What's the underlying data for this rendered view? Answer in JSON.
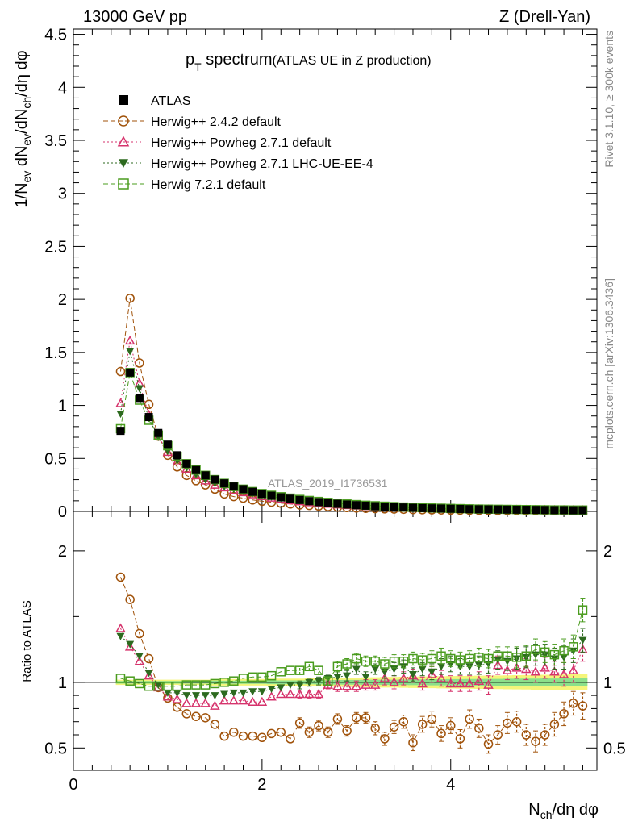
{
  "header": {
    "left": "13000 GeV pp",
    "right": "Z (Drell-Yan)"
  },
  "side_labels": {
    "rivet": "Rivet 3.1.10, ≥ 300k events",
    "mcplots": "mcplots.cern.ch [arXiv:1306.3436]"
  },
  "chart_data": [
    {
      "type": "scatter",
      "title_main": "p",
      "title_sub": "T",
      "title_main2": " spectrum",
      "title_paren": "(ATLAS UE in Z production)",
      "analysis_tag": "ATLAS_2019_I1736531",
      "ylabel": "1/N_ev dN_ev/dN_ch/dη dφ",
      "xlim": [
        0,
        5.55
      ],
      "ylim": [
        0,
        4.55
      ],
      "yticks": [
        {
          "v": 0,
          "label": "0"
        },
        {
          "v": 0.5,
          "label": "0.5"
        },
        {
          "v": 1,
          "label": "1"
        },
        {
          "v": 1.5,
          "label": "1.5"
        },
        {
          "v": 2,
          "label": "2"
        },
        {
          "v": 2.5,
          "label": "2.5"
        },
        {
          "v": 3,
          "label": "3"
        },
        {
          "v": 3.5,
          "label": "3.5"
        },
        {
          "v": 4,
          "label": "4"
        },
        {
          "v": 4.5,
          "label": "4.5"
        }
      ],
      "legend": [
        {
          "key": "atlas",
          "label": "ATLAS"
        },
        {
          "key": "h242",
          "label": "Herwig++ 2.4.2 default"
        },
        {
          "key": "hpow",
          "label": "Herwig++ Powheg 2.7.1 default"
        },
        {
          "key": "hlhc",
          "label": "Herwig++ Powheg 2.7.1 LHC-UE-EE-4"
        },
        {
          "key": "h721",
          "label": "Herwig 7.2.1 default"
        }
      ],
      "x_start": 0.5,
      "x_step": 0.1,
      "series": [
        {
          "key": "atlas",
          "name": "ATLAS",
          "color": "#000000",
          "marker": "square-filled",
          "values": [
            0.76,
            1.31,
            1.07,
            0.89,
            0.74,
            0.63,
            0.53,
            0.45,
            0.39,
            0.34,
            0.3,
            0.265,
            0.235,
            0.21,
            0.185,
            0.165,
            0.148,
            0.133,
            0.12,
            0.108,
            0.097,
            0.088,
            0.079,
            0.072,
            0.065,
            0.059,
            0.054,
            0.049,
            0.045,
            0.041,
            0.037,
            0.034,
            0.031,
            0.029,
            0.027,
            0.025,
            0.023,
            0.021,
            0.02,
            0.019,
            0.018,
            0.017,
            0.016,
            0.015,
            0.014,
            0.013,
            0.012,
            0.012,
            0.011,
            0.011
          ]
        },
        {
          "key": "h242",
          "name": "Herwig++ 2.4.2 default",
          "color": "#a0520a",
          "marker": "circle-open",
          "values": [
            1.32,
            2.01,
            1.4,
            1.01,
            0.71,
            0.53,
            0.42,
            0.34,
            0.29,
            0.25,
            0.21,
            0.165,
            0.14,
            0.125,
            0.108,
            0.096,
            0.087,
            0.078,
            0.07,
            0.061,
            0.056,
            0.05,
            0.045,
            0.04,
            0.036,
            0.032,
            0.029,
            0.026,
            0.024,
            0.022,
            0.02,
            0.018,
            0.016,
            0.015,
            0.014,
            0.013,
            0.012,
            0.011,
            0.01,
            0.01,
            0.009,
            0.009,
            0.008,
            0.008,
            0.008,
            0.008,
            0.008,
            0.007,
            0.007,
            0.007
          ]
        },
        {
          "key": "hpow",
          "name": "Herwig++ Powheg 2.7.1 default",
          "color": "#d6336c",
          "marker": "triangle-open",
          "values": [
            1.02,
            1.61,
            1.21,
            0.91,
            0.71,
            0.56,
            0.47,
            0.4,
            0.34,
            0.29,
            0.25,
            0.225,
            0.2,
            0.18,
            0.16,
            0.143,
            0.128,
            0.116,
            0.104,
            0.094,
            0.085,
            0.077,
            0.07,
            0.064,
            0.058,
            0.053,
            0.048,
            0.044,
            0.041,
            0.038,
            0.035,
            0.032,
            0.03,
            0.028,
            0.026,
            0.024,
            0.022,
            0.021,
            0.019,
            0.018,
            0.017,
            0.016,
            0.015,
            0.014,
            0.013,
            0.013,
            0.012,
            0.012,
            0.011,
            0.011
          ]
        },
        {
          "key": "hlhc",
          "name": "Herwig++ Powheg 2.7.1 LHC-UE-EE-4",
          "color": "#2d6a1f",
          "marker": "triangle-down-filled",
          "values": [
            0.92,
            1.51,
            1.16,
            0.88,
            0.7,
            0.57,
            0.48,
            0.41,
            0.35,
            0.3,
            0.265,
            0.235,
            0.21,
            0.19,
            0.17,
            0.153,
            0.138,
            0.125,
            0.113,
            0.102,
            0.092,
            0.084,
            0.077,
            0.07,
            0.064,
            0.058,
            0.053,
            0.049,
            0.045,
            0.041,
            0.038,
            0.035,
            0.032,
            0.03,
            0.028,
            0.026,
            0.024,
            0.022,
            0.021,
            0.02,
            0.019,
            0.018,
            0.017,
            0.016,
            0.015,
            0.014,
            0.013,
            0.013,
            0.012,
            0.012
          ]
        },
        {
          "key": "h721",
          "name": "Herwig 7.2.1 default",
          "color": "#4a9c1e",
          "marker": "square-open",
          "values": [
            0.78,
            1.31,
            1.05,
            0.86,
            0.72,
            0.62,
            0.52,
            0.45,
            0.39,
            0.34,
            0.3,
            0.265,
            0.235,
            0.21,
            0.187,
            0.168,
            0.152,
            0.138,
            0.125,
            0.113,
            0.103,
            0.094,
            0.085,
            0.077,
            0.07,
            0.064,
            0.058,
            0.053,
            0.049,
            0.045,
            0.041,
            0.038,
            0.035,
            0.032,
            0.03,
            0.028,
            0.026,
            0.024,
            0.022,
            0.021,
            0.02,
            0.019,
            0.018,
            0.017,
            0.016,
            0.015,
            0.014,
            0.014,
            0.013,
            0.013
          ]
        }
      ]
    },
    {
      "type": "scatter",
      "ylabel": "Ratio to ATLAS",
      "xlabel": "N_ch/dη dφ",
      "xlim": [
        0,
        5.55
      ],
      "ylim": [
        0.33,
        2.3
      ],
      "yticks_left": [
        {
          "v": 0.5,
          "label": "0.5"
        },
        {
          "v": 1,
          "label": "1"
        },
        {
          "v": 2,
          "label": "2"
        }
      ],
      "xticks": [
        {
          "v": 0,
          "label": "0"
        },
        {
          "v": 2,
          "label": "2"
        },
        {
          "v": 4,
          "label": "4"
        }
      ],
      "band_inner": [
        0.01,
        0.01,
        0.01,
        0.01,
        0.01,
        0.01,
        0.01,
        0.01,
        0.01,
        0.01,
        0.012,
        0.012,
        0.012,
        0.012,
        0.012,
        0.012,
        0.014,
        0.014,
        0.014,
        0.014,
        0.015,
        0.016,
        0.016,
        0.017,
        0.018,
        0.018,
        0.019,
        0.02,
        0.02,
        0.02,
        0.021,
        0.022,
        0.022,
        0.023,
        0.023,
        0.024,
        0.024,
        0.025,
        0.025,
        0.026,
        0.026,
        0.027,
        0.027,
        0.028,
        0.028,
        0.029,
        0.029,
        0.03,
        0.03,
        0.03
      ],
      "band_outer": [
        0.02,
        0.02,
        0.02,
        0.02,
        0.02,
        0.02,
        0.02,
        0.02,
        0.02,
        0.02,
        0.025,
        0.025,
        0.025,
        0.025,
        0.025,
        0.025,
        0.028,
        0.028,
        0.028,
        0.028,
        0.03,
        0.032,
        0.032,
        0.034,
        0.035,
        0.036,
        0.037,
        0.038,
        0.04,
        0.04,
        0.042,
        0.043,
        0.044,
        0.045,
        0.046,
        0.047,
        0.048,
        0.049,
        0.05,
        0.051,
        0.052,
        0.053,
        0.054,
        0.055,
        0.056,
        0.057,
        0.058,
        0.059,
        0.06,
        0.06
      ],
      "series": [
        {
          "key": "h242",
          "name": "Herwig++ 2.4.2 default",
          "values": [
            1.8,
            1.63,
            1.37,
            1.18,
            0.96,
            0.88,
            0.81,
            0.76,
            0.74,
            0.73,
            0.68,
            0.59,
            0.62,
            0.59,
            0.59,
            0.58,
            0.61,
            0.62,
            0.57,
            0.69,
            0.62,
            0.67,
            0.62,
            0.72,
            0.63,
            0.73,
            0.73,
            0.65,
            0.57,
            0.66,
            0.7,
            0.54,
            0.68,
            0.72,
            0.61,
            0.67,
            0.57,
            0.72,
            0.65,
            0.53,
            0.6,
            0.69,
            0.7,
            0.6,
            0.55,
            0.6,
            0.68,
            0.76,
            0.84,
            0.82
          ],
          "errors": [
            0,
            0,
            0,
            0,
            0,
            0,
            0,
            0,
            0,
            0,
            0,
            0,
            0,
            0,
            0,
            0,
            0,
            0,
            0,
            0.04,
            0.04,
            0.04,
            0.04,
            0.04,
            0.04,
            0.04,
            0.04,
            0.05,
            0.05,
            0.05,
            0.05,
            0.06,
            0.06,
            0.06,
            0.06,
            0.06,
            0.07,
            0.07,
            0.07,
            0.07,
            0.07,
            0.08,
            0.08,
            0.08,
            0.08,
            0.08,
            0.09,
            0.09,
            0.09,
            0.1
          ]
        },
        {
          "key": "hpow",
          "name": "Herwig++ Powheg 2.7.1 default",
          "values": [
            1.41,
            1.27,
            1.16,
            1.05,
            0.96,
            0.89,
            0.87,
            0.84,
            0.84,
            0.84,
            0.82,
            0.86,
            0.86,
            0.86,
            0.85,
            0.85,
            0.89,
            0.91,
            0.91,
            0.91,
            0.91,
            0.91,
            0.98,
            0.97,
            0.97,
            0.97,
            0.98,
            0.98,
            1.03,
            1.0,
            1.03,
            1.05,
            0.99,
            1.06,
            1.03,
            0.99,
            0.99,
            0.99,
            1.01,
            0.98,
            1.13,
            1.09,
            1.11,
            1.1,
            1.08,
            1.11,
            1.08,
            1.06,
            1.09,
            1.25
          ],
          "errors": [
            0,
            0,
            0,
            0,
            0,
            0,
            0,
            0,
            0,
            0,
            0,
            0,
            0,
            0,
            0,
            0,
            0,
            0,
            0,
            0.03,
            0.03,
            0.03,
            0.03,
            0.04,
            0.04,
            0.04,
            0.04,
            0.04,
            0.05,
            0.05,
            0.05,
            0.05,
            0.05,
            0.06,
            0.06,
            0.06,
            0.06,
            0.06,
            0.07,
            0.07,
            0.07,
            0.07,
            0.08,
            0.08,
            0.08,
            0.08,
            0.08,
            0.09,
            0.09,
            0.09
          ]
        },
        {
          "key": "hlhc",
          "name": "Herwig++ Powheg 2.7.1 LHC-UE-EE-4",
          "values": [
            1.35,
            1.29,
            1.2,
            1.07,
            0.98,
            0.92,
            0.92,
            0.9,
            0.9,
            0.9,
            0.9,
            0.91,
            0.92,
            0.92,
            0.93,
            0.93,
            0.95,
            0.96,
            0.98,
            0.98,
            1.0,
            1.01,
            1.03,
            1.04,
            1.05,
            1.1,
            1.04,
            1.1,
            1.08,
            1.1,
            1.12,
            1.06,
            1.1,
            1.08,
            1.12,
            1.14,
            1.12,
            1.12,
            1.13,
            1.14,
            1.17,
            1.16,
            1.18,
            1.19,
            1.21,
            1.21,
            1.18,
            1.19,
            1.24,
            1.32
          ],
          "errors": [
            0,
            0,
            0,
            0,
            0,
            0,
            0,
            0,
            0,
            0,
            0,
            0,
            0,
            0,
            0,
            0,
            0,
            0,
            0,
            0.03,
            0.03,
            0.03,
            0.03,
            0.04,
            0.04,
            0.04,
            0.04,
            0.04,
            0.05,
            0.05,
            0.05,
            0.05,
            0.05,
            0.06,
            0.06,
            0.06,
            0.06,
            0.06,
            0.07,
            0.07,
            0.07,
            0.07,
            0.08,
            0.08,
            0.08,
            0.08,
            0.08,
            0.09,
            0.09,
            0.09
          ]
        },
        {
          "key": "h721",
          "name": "Herwig 7.2.1 default",
          "values": [
            1.03,
            1.01,
            0.99,
            0.97,
            0.97,
            0.97,
            0.97,
            0.98,
            0.98,
            0.98,
            0.99,
            1.0,
            1.01,
            1.03,
            1.04,
            1.04,
            1.05,
            1.08,
            1.09,
            1.09,
            1.12,
            1.09,
            1.01,
            1.12,
            1.14,
            1.18,
            1.16,
            1.16,
            1.14,
            1.16,
            1.16,
            1.18,
            1.17,
            1.18,
            1.2,
            1.18,
            1.17,
            1.18,
            1.19,
            1.18,
            1.2,
            1.2,
            1.19,
            1.2,
            1.25,
            1.23,
            1.21,
            1.24,
            1.27,
            1.55
          ],
          "errors": [
            0,
            0,
            0,
            0,
            0,
            0,
            0,
            0,
            0,
            0,
            0,
            0,
            0,
            0,
            0,
            0,
            0,
            0,
            0,
            0.03,
            0.03,
            0.03,
            0.03,
            0.04,
            0.04,
            0.04,
            0.04,
            0.04,
            0.05,
            0.05,
            0.05,
            0.05,
            0.05,
            0.06,
            0.06,
            0.06,
            0.06,
            0.06,
            0.07,
            0.07,
            0.07,
            0.07,
            0.08,
            0.08,
            0.08,
            0.08,
            0.08,
            0.09,
            0.09,
            0.09
          ]
        }
      ]
    }
  ]
}
